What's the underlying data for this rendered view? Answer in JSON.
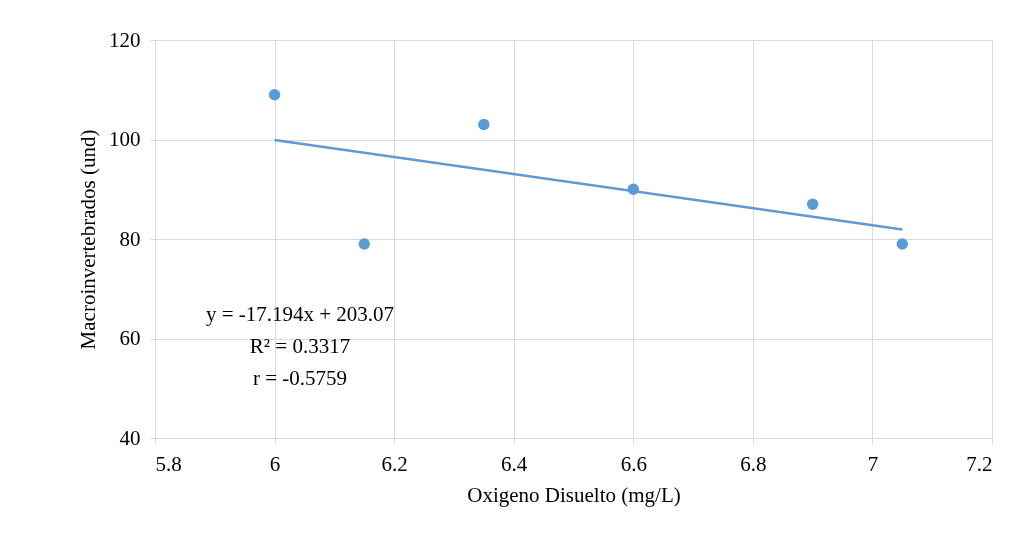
{
  "chart_data": {
    "type": "scatter",
    "xlabel": "Oxigeno Disuelto (mg/L)",
    "ylabel": "Macroinvertebrados (und)",
    "x": [
      6,
      6.15,
      6.35,
      6.6,
      6.9,
      7.05
    ],
    "series": [
      {
        "color": "#5b9bd5",
        "marker": "circle",
        "values": [
          109,
          79,
          103,
          90,
          87,
          79
        ]
      },
      {
        "type": "line",
        "color": "#5b9bd5",
        "x": [
          6,
          7.05
        ],
        "marker": "none",
        "values": [
          99.9,
          81.9
        ]
      }
    ],
    "xlim": [
      5.8,
      7.2
    ],
    "xticks": [
      5.8,
      6,
      6.2,
      6.4,
      6.6,
      6.8,
      7,
      7.2
    ],
    "ylim": [
      40,
      120
    ],
    "yticks": [
      40,
      60,
      80,
      100,
      120
    ],
    "grid": true,
    "line_style": "solid",
    "annotations": [
      "y = -17.194x + 203.07",
      "R² = 0.3317",
      "r = -0.5759"
    ]
  }
}
